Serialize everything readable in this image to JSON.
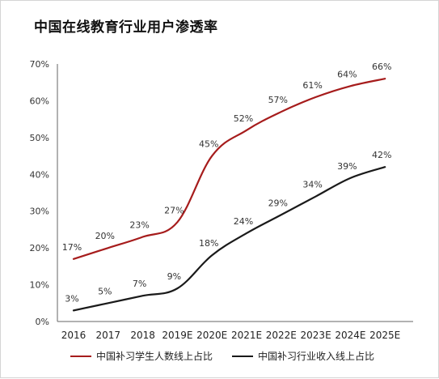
{
  "title": "中国在线教育行业用户渗透率",
  "chart_data": {
    "type": "line",
    "title": "中国在线教育行业用户渗透率",
    "categories": [
      "2016",
      "2017",
      "2018",
      "2019E",
      "2020E",
      "2021E",
      "2022E",
      "2023E",
      "2024E",
      "2025E"
    ],
    "series": [
      {
        "name": "中国补习学生人数线上占比",
        "color": "#a61c1c",
        "values": [
          17,
          20,
          23,
          27,
          45,
          52,
          57,
          61,
          64,
          66
        ],
        "labels": [
          "17%",
          "20%",
          "23%",
          "27%",
          "45%",
          "52%",
          "57%",
          "61%",
          "64%",
          "66%"
        ]
      },
      {
        "name": "中国补习行业收入线上占比",
        "color": "#1a1a1a",
        "values": [
          3,
          5,
          7,
          9,
          18,
          24,
          29,
          34,
          39,
          42
        ],
        "labels": [
          "3%",
          "5%",
          "7%",
          "9%",
          "18%",
          "24%",
          "29%",
          "34%",
          "39%",
          "42%"
        ]
      }
    ],
    "ylim": [
      0,
      70
    ],
    "yticks": [
      "0%",
      "10%",
      "20%",
      "30%",
      "40%",
      "50%",
      "60%",
      "70%"
    ],
    "grid": false,
    "legend_position": "bottom"
  }
}
